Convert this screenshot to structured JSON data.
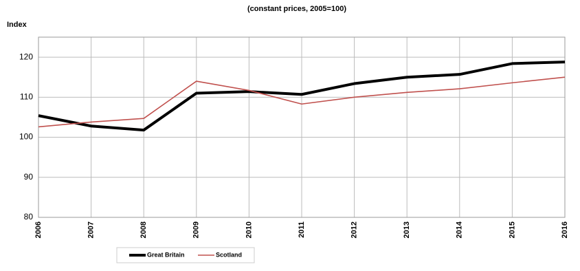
{
  "chart_data": {
    "type": "line",
    "title": "(constant prices, 2005=100)",
    "y_label": "Index",
    "categories": [
      "2006",
      "2007",
      "2008",
      "2009",
      "2010",
      "2011",
      "2012",
      "2013",
      "2014",
      "2015",
      "2016"
    ],
    "series": [
      {
        "name": "Great Britain",
        "color": "#000000",
        "values": [
          105.4,
          102.8,
          101.8,
          111.0,
          111.4,
          110.7,
          113.4,
          115.0,
          115.7,
          118.4,
          118.8
        ]
      },
      {
        "name": "Scotland",
        "color": "#c0504d",
        "values": [
          102.6,
          103.8,
          104.7,
          114.0,
          111.7,
          108.3,
          110.0,
          111.2,
          112.1,
          113.6,
          115.0
        ]
      }
    ],
    "ylim": [
      80,
      125
    ],
    "yticks": [
      80,
      90,
      100,
      110,
      120
    ],
    "grid": true
  }
}
